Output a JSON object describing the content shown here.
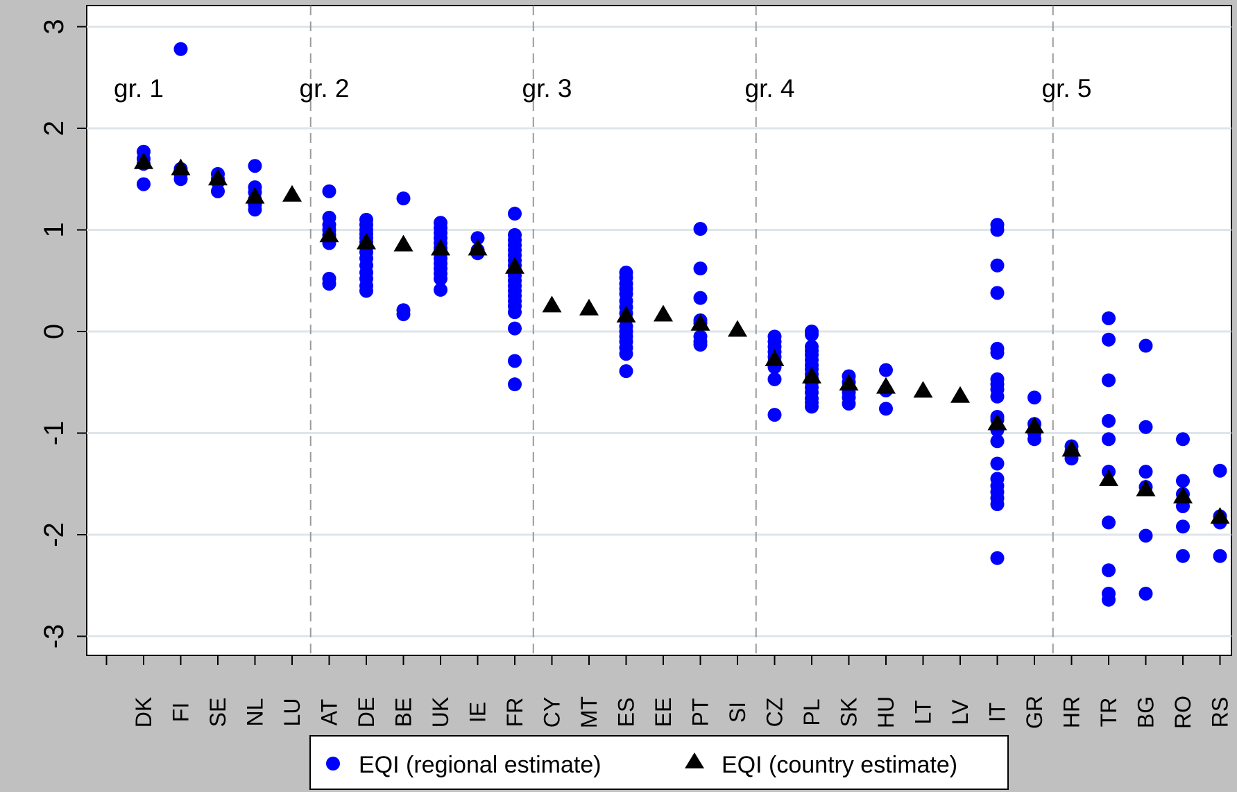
{
  "chart_data": {
    "type": "scatter",
    "title": "",
    "xlabel": "",
    "ylabel": "",
    "ylim": [
      -3.2,
      3.2
    ],
    "yticks": [
      -3,
      -2,
      -1,
      0,
      1,
      2,
      3
    ],
    "ytick_labels": [
      "-3",
      "-2",
      "-1",
      "0",
      "1",
      "2",
      "3"
    ],
    "grid": true,
    "legend_position": "bottom",
    "colors": {
      "background": "#c0c0c0",
      "plot_area": "#ffffff",
      "gridline": "#dde6ea",
      "regional": "#0000ff",
      "country": "#000000",
      "group_divider": "#9a9a9a"
    },
    "categories": [
      "DK",
      "FI",
      "SE",
      "NL",
      "LU",
      "AT",
      "DE",
      "BE",
      "UK",
      "IE",
      "FR",
      "CY",
      "MT",
      "ES",
      "EE",
      "PT",
      "SI",
      "CZ",
      "PL",
      "SK",
      "HU",
      "LT",
      "LV",
      "IT",
      "GR",
      "HR",
      "TR",
      "BG",
      "RO",
      "RS"
    ],
    "groups": [
      {
        "label": "gr. 1",
        "start": "DK",
        "end": "LU"
      },
      {
        "label": "gr. 2",
        "start": "AT",
        "end": "FR"
      },
      {
        "label": "gr. 3",
        "start": "CY",
        "end": "SI"
      },
      {
        "label": "gr. 4",
        "start": "CZ",
        "end": "GR"
      },
      {
        "label": "gr. 5",
        "start": "HR",
        "end": "RS"
      }
    ],
    "series": [
      {
        "name": "EQI (regional estimate)",
        "marker": "circle",
        "color": "#0000ff",
        "values": [
          [
            1.77,
            1.7,
            1.65,
            1.45
          ],
          [
            2.78,
            1.6,
            1.55,
            1.5
          ],
          [
            1.55,
            1.5,
            1.47,
            1.38
          ],
          [
            1.63,
            1.42,
            1.37,
            1.3,
            1.25,
            1.2
          ],
          [],
          [
            1.38,
            1.12,
            1.05,
            1.0,
            0.95,
            0.9,
            0.87,
            0.52,
            0.47
          ],
          [
            1.1,
            1.05,
            1.0,
            0.96,
            0.92,
            0.88,
            0.83,
            0.78,
            0.72,
            0.65,
            0.58,
            0.52,
            0.45,
            0.4
          ],
          [
            1.31,
            0.21,
            0.17
          ],
          [
            1.07,
            1.02,
            0.97,
            0.92,
            0.87,
            0.82,
            0.77,
            0.72,
            0.67,
            0.62,
            0.57,
            0.52,
            0.41
          ],
          [
            0.92,
            0.8,
            0.77
          ],
          [
            1.16,
            0.95,
            0.9,
            0.85,
            0.8,
            0.75,
            0.7,
            0.65,
            0.6,
            0.55,
            0.5,
            0.45,
            0.4,
            0.35,
            0.3,
            0.25,
            0.19,
            0.03,
            -0.29,
            -0.52
          ],
          [],
          [],
          [
            0.58,
            0.53,
            0.47,
            0.42,
            0.37,
            0.3,
            0.24,
            0.18,
            0.12,
            0.05,
            0.0,
            -0.05,
            -0.1,
            -0.16,
            -0.22,
            -0.39
          ],
          [],
          [
            1.01,
            0.62,
            0.33,
            0.11,
            0.08,
            -0.05,
            -0.1,
            -0.13
          ],
          [],
          [
            -0.05,
            -0.1,
            -0.15,
            -0.2,
            -0.25,
            -0.3,
            -0.35,
            -0.47,
            -0.82
          ],
          [
            0.0,
            -0.03,
            -0.15,
            -0.19,
            -0.23,
            -0.28,
            -0.33,
            -0.37,
            -0.42,
            -0.46,
            -0.5,
            -0.55,
            -0.6,
            -0.66,
            -0.7,
            -0.74
          ],
          [
            -0.44,
            -0.5,
            -0.55,
            -0.6,
            -0.65,
            -0.71
          ],
          [
            -0.38,
            -0.58,
            -0.76
          ],
          [],
          [],
          [
            1.05,
            1.0,
            0.65,
            0.38,
            -0.17,
            -0.21,
            -0.47,
            -0.52,
            -0.57,
            -0.64,
            -0.84,
            -0.87,
            -0.97,
            -1.08,
            -1.3,
            -1.45,
            -1.52,
            -1.58,
            -1.64,
            -1.7,
            -2.23
          ],
          [
            -0.65,
            -0.91,
            -1.0,
            -1.06
          ],
          [
            -1.13,
            -1.18,
            -1.25
          ],
          [
            0.13,
            -0.08,
            -0.48,
            -0.88,
            -1.06,
            -1.38,
            -1.88,
            -2.35,
            -2.58,
            -2.64
          ],
          [
            -0.14,
            -0.94,
            -1.38,
            -1.53,
            -2.01,
            -2.58
          ],
          [
            -1.06,
            -1.47,
            -1.6,
            -1.66,
            -1.72,
            -1.92,
            -2.21
          ],
          [
            -1.37,
            -1.82,
            -1.88,
            -2.21
          ]
        ]
      },
      {
        "name": "EQI (country estimate)",
        "marker": "triangle",
        "color": "#000000",
        "values": [
          1.66,
          1.6,
          1.5,
          1.32,
          1.34,
          0.94,
          0.87,
          0.85,
          0.81,
          0.81,
          0.63,
          0.25,
          0.22,
          0.15,
          0.16,
          0.07,
          0.01,
          -0.28,
          -0.45,
          -0.52,
          -0.55,
          -0.59,
          -0.64,
          -0.91,
          -0.94,
          -1.17,
          -1.46,
          -1.56,
          -1.63,
          -1.83
        ]
      }
    ]
  },
  "legend": {
    "items": [
      {
        "label": "EQI (regional estimate)",
        "marker": "circle"
      },
      {
        "label": "EQI (country estimate)",
        "marker": "triangle"
      }
    ]
  }
}
